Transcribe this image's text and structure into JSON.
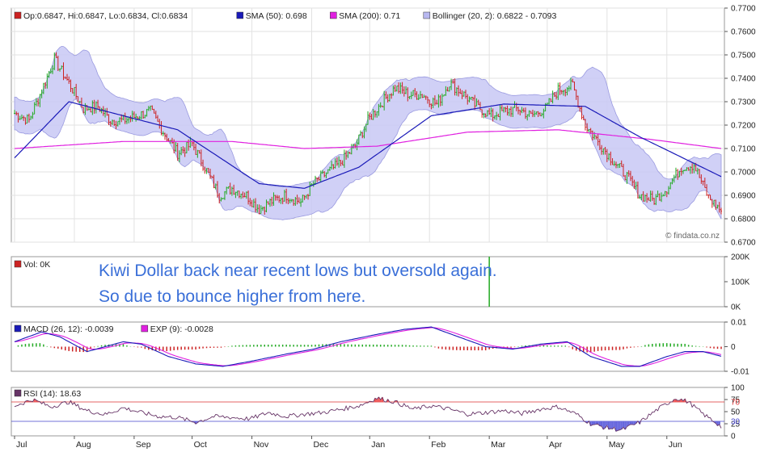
{
  "chart_data": [
    {
      "type": "candlestick",
      "panel": "price",
      "legend": [
        {
          "name": "Op:0.6847, Hi:0.6847, Lo:0.6834, Cl:0.6834",
          "color": "#cc2222"
        },
        {
          "name": "SMA (50): 0.698",
          "color": "#1a1ab8"
        },
        {
          "name": "SMA (200): 0.71",
          "color": "#e020e0"
        },
        {
          "name": "Bollinger (20, 2): 0.6822 - 0.7093",
          "color": "#b8b8f0"
        }
      ],
      "legend_placement": "top-left",
      "watermark": "© findata.co.nz",
      "ylim": [
        0.67,
        0.77
      ],
      "yticks": [
        "0.7700",
        "0.7600",
        "0.7500",
        "0.7400",
        "0.7300",
        "0.7200",
        "0.7100",
        "0.7000",
        "0.6900",
        "0.6800",
        "0.6700"
      ],
      "ytick_values": [
        0.77,
        0.76,
        0.75,
        0.74,
        0.73,
        0.72,
        0.71,
        0.7,
        0.69,
        0.68,
        0.67
      ],
      "close_anchors": [
        [
          0,
          0.725
        ],
        [
          8,
          0.722
        ],
        [
          15,
          0.735
        ],
        [
          22,
          0.748
        ],
        [
          30,
          0.738
        ],
        [
          38,
          0.727
        ],
        [
          46,
          0.728
        ],
        [
          53,
          0.722
        ],
        [
          60,
          0.722
        ],
        [
          68,
          0.724
        ],
        [
          75,
          0.726
        ],
        [
          83,
          0.716
        ],
        [
          90,
          0.708
        ],
        [
          98,
          0.712
        ],
        [
          105,
          0.702
        ],
        [
          113,
          0.69
        ],
        [
          120,
          0.693
        ],
        [
          128,
          0.69
        ],
        [
          135,
          0.684
        ],
        [
          143,
          0.688
        ],
        [
          150,
          0.69
        ],
        [
          158,
          0.687
        ],
        [
          165,
          0.695
        ],
        [
          173,
          0.7
        ],
        [
          180,
          0.704
        ],
        [
          188,
          0.711
        ],
        [
          195,
          0.722
        ],
        [
          203,
          0.73
        ],
        [
          210,
          0.736
        ],
        [
          218,
          0.733
        ],
        [
          225,
          0.733
        ],
        [
          233,
          0.729
        ],
        [
          240,
          0.738
        ],
        [
          248,
          0.733
        ],
        [
          255,
          0.728
        ],
        [
          263,
          0.724
        ],
        [
          270,
          0.726
        ],
        [
          278,
          0.727
        ],
        [
          285,
          0.724
        ],
        [
          293,
          0.727
        ],
        [
          300,
          0.735
        ],
        [
          308,
          0.737
        ],
        [
          315,
          0.72
        ],
        [
          323,
          0.712
        ],
        [
          330,
          0.705
        ],
        [
          338,
          0.698
        ],
        [
          345,
          0.69
        ],
        [
          353,
          0.688
        ],
        [
          360,
          0.693
        ],
        [
          368,
          0.702
        ],
        [
          375,
          0.703
        ],
        [
          383,
          0.689
        ],
        [
          390,
          0.6834
        ]
      ],
      "sma50_anchors": [
        [
          0,
          0.706
        ],
        [
          30,
          0.73
        ],
        [
          90,
          0.718
        ],
        [
          135,
          0.695
        ],
        [
          160,
          0.693
        ],
        [
          190,
          0.702
        ],
        [
          230,
          0.724
        ],
        [
          270,
          0.729
        ],
        [
          315,
          0.728
        ],
        [
          345,
          0.715
        ],
        [
          390,
          0.698
        ]
      ],
      "sma200_anchors": [
        [
          0,
          0.71
        ],
        [
          60,
          0.713
        ],
        [
          120,
          0.713
        ],
        [
          160,
          0.71
        ],
        [
          200,
          0.711
        ],
        [
          250,
          0.717
        ],
        [
          300,
          0.718
        ],
        [
          350,
          0.714
        ],
        [
          390,
          0.71
        ]
      ],
      "xticks": [
        {
          "label": "Jul",
          "bar": 0
        },
        {
          "label": "Aug",
          "bar": 33
        },
        {
          "label": "Sep",
          "bar": 66
        },
        {
          "label": "Oct",
          "bar": 98
        },
        {
          "label": "Nov",
          "bar": 131
        },
        {
          "label": "Dec",
          "bar": 164
        },
        {
          "label": "Jan",
          "bar": 196
        },
        {
          "label": "Feb",
          "bar": 229
        },
        {
          "label": "Mar",
          "bar": 262
        },
        {
          "label": "Apr",
          "bar": 294
        },
        {
          "label": "May",
          "bar": 327
        },
        {
          "label": "Jun",
          "bar": 360
        }
      ],
      "bar_count": 391
    },
    {
      "type": "bar",
      "panel": "volume",
      "legend": [
        {
          "name": "Vol: 0K",
          "color": "#cc2222"
        }
      ],
      "ylim": [
        0,
        200
      ],
      "yticks": [
        "200K",
        "100K",
        "0K"
      ],
      "ytick_values": [
        200,
        100,
        0
      ],
      "spike": {
        "bar": 262,
        "value": 200
      }
    },
    {
      "type": "line",
      "panel": "macd",
      "legend": [
        {
          "name": "MACD (26, 12): -0.0039",
          "color": "#1a1ab8"
        },
        {
          "name": "EXP (9): -0.0028",
          "color": "#e020e0"
        }
      ],
      "ylim": [
        -0.01,
        0.01
      ],
      "yticks": [
        "0.01",
        "0",
        "-0.01"
      ],
      "ytick_values": [
        0.01,
        0,
        -0.01
      ],
      "macd_anchors": [
        [
          0,
          0.002
        ],
        [
          15,
          0.006
        ],
        [
          25,
          0.004
        ],
        [
          40,
          -0.002
        ],
        [
          50,
          0.0
        ],
        [
          60,
          0.002
        ],
        [
          70,
          0.001
        ],
        [
          85,
          -0.004
        ],
        [
          100,
          -0.007
        ],
        [
          115,
          -0.008
        ],
        [
          130,
          -0.006
        ],
        [
          150,
          -0.003
        ],
        [
          165,
          -0.001
        ],
        [
          180,
          0.002
        ],
        [
          200,
          0.005
        ],
        [
          215,
          0.007
        ],
        [
          230,
          0.008
        ],
        [
          245,
          0.004
        ],
        [
          260,
          0.0
        ],
        [
          275,
          -0.001
        ],
        [
          290,
          0.001
        ],
        [
          305,
          0.002
        ],
        [
          318,
          -0.004
        ],
        [
          335,
          -0.008
        ],
        [
          345,
          -0.008
        ],
        [
          360,
          -0.004
        ],
        [
          370,
          -0.002
        ],
        [
          380,
          -0.002
        ],
        [
          390,
          -0.0039
        ]
      ]
    },
    {
      "type": "line",
      "panel": "rsi",
      "legend": [
        {
          "name": "RSI (14): 18.63",
          "color": "#663366"
        }
      ],
      "ylim": [
        0,
        100
      ],
      "yticks": [
        "100",
        "75",
        "50",
        "25",
        "0"
      ],
      "ytick_values": [
        100,
        75,
        50,
        25,
        0
      ],
      "reference_lines": [
        {
          "value": 70,
          "label": "70",
          "color": "#dd3333"
        },
        {
          "value": 30,
          "label": "30",
          "color": "#4444cc"
        }
      ],
      "rsi_anchors": [
        [
          0,
          62
        ],
        [
          10,
          75
        ],
        [
          20,
          60
        ],
        [
          30,
          70
        ],
        [
          40,
          52
        ],
        [
          50,
          44
        ],
        [
          60,
          58
        ],
        [
          70,
          48
        ],
        [
          80,
          40
        ],
        [
          90,
          38
        ],
        [
          100,
          28
        ],
        [
          110,
          40
        ],
        [
          120,
          38
        ],
        [
          130,
          35
        ],
        [
          140,
          48
        ],
        [
          150,
          40
        ],
        [
          160,
          45
        ],
        [
          170,
          48
        ],
        [
          180,
          55
        ],
        [
          190,
          62
        ],
        [
          200,
          78
        ],
        [
          210,
          70
        ],
        [
          220,
          55
        ],
        [
          230,
          62
        ],
        [
          240,
          55
        ],
        [
          250,
          45
        ],
        [
          260,
          48
        ],
        [
          270,
          52
        ],
        [
          280,
          46
        ],
        [
          290,
          55
        ],
        [
          300,
          60
        ],
        [
          310,
          45
        ],
        [
          318,
          25
        ],
        [
          325,
          18
        ],
        [
          335,
          12
        ],
        [
          345,
          28
        ],
        [
          355,
          55
        ],
        [
          365,
          78
        ],
        [
          372,
          70
        ],
        [
          380,
          45
        ],
        [
          388,
          25
        ],
        [
          390,
          18.63
        ]
      ]
    }
  ],
  "annotation": {
    "line1": "Kiwi Dollar back near recent lows but oversold again.",
    "line2": "So due to bounce higher from here."
  }
}
